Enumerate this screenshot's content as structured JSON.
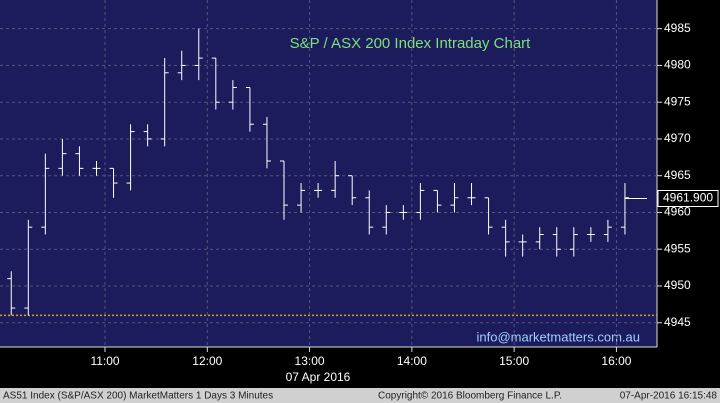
{
  "chart_data": {
    "type": "ohlc",
    "title": "S&P / ASX 200 Index Intraday Chart",
    "watermark": "info@marketmatters.com.au",
    "x_axis_label": "07 Apr 2016",
    "footer_left": "AS51 Index (S&P/ASX 200) MarketMatters 1 Days 3 Minutes",
    "footer_center": "Copyright© 2016 Bloomberg Finance L.P.",
    "footer_right": "07-Apr-2016 16:15:48",
    "x": [
      605,
      615,
      625,
      635,
      645,
      655,
      665,
      675,
      685,
      695,
      705,
      715,
      725,
      735,
      745,
      755,
      765,
      775,
      785,
      795,
      805,
      815,
      825,
      835,
      845,
      855,
      865,
      875,
      885,
      895,
      905,
      915,
      925,
      935,
      945,
      955,
      965
    ],
    "open": [
      4951,
      4947,
      4958,
      4966,
      4968,
      4966,
      4966,
      4964,
      4971,
      4970,
      4979,
      4980,
      4981,
      4975,
      4977,
      4972,
      4967,
      4961,
      4963,
      4963,
      4965,
      4962,
      4958,
      4960,
      4960,
      4963,
      4961,
      4962,
      4962,
      4958,
      4956,
      4956,
      4957,
      4955,
      4957,
      4957,
      4958
    ],
    "high": [
      4952,
      4959,
      4968,
      4970,
      4969,
      4967,
      4966,
      4972,
      4972,
      4981,
      4982,
      4985,
      4981,
      4978,
      4977,
      4973,
      4967,
      4964,
      4964,
      4967,
      4965,
      4963,
      4961,
      4961,
      4964,
      4963,
      4964,
      4964,
      4962,
      4959,
      4957,
      4958,
      4958,
      4958,
      4958,
      4959,
      4964
    ],
    "low": [
      4946,
      4946,
      4957,
      4965,
      4965,
      4965,
      4962,
      4963,
      4969,
      4969,
      4978,
      4978,
      4974,
      4974,
      4971,
      4966,
      4959,
      4960,
      4962,
      4962,
      4961,
      4957,
      4957,
      4959,
      4959,
      4960,
      4960,
      4961,
      4957,
      4954,
      4954,
      4955,
      4954,
      4954,
      4956,
      4956,
      4957
    ],
    "close": [
      4947,
      4958,
      4966,
      4968,
      4966,
      4966,
      4964,
      4971,
      4970,
      4979,
      4980,
      4981,
      4975,
      4977,
      4972,
      4967,
      4961,
      4963,
      4963,
      4965,
      4962,
      4958,
      4960,
      4960,
      4963,
      4961,
      4962,
      4962,
      4958,
      4956,
      4956,
      4957,
      4955,
      4957,
      4957,
      4958,
      4962
    ],
    "color": "#ffffff",
    "last_price": {
      "value": 4961.9,
      "label": "4961.900"
    },
    "reference_line": {
      "value": 4946,
      "color": "#e89a1c"
    },
    "xlim": [
      598.4,
      983.8
    ],
    "ylim": [
      4941.7,
      4988.9
    ],
    "xticks": [
      {
        "value": 660,
        "label": "11:00"
      },
      {
        "value": 720,
        "label": "12:00"
      },
      {
        "value": 780,
        "label": "13:00"
      },
      {
        "value": 840,
        "label": "14:00"
      },
      {
        "value": 900,
        "label": "15:00"
      },
      {
        "value": 960,
        "label": "16:00"
      }
    ],
    "yticks": [
      4945,
      4950,
      4955,
      4960,
      4965,
      4970,
      4975,
      4980,
      4985
    ],
    "grid": true
  }
}
